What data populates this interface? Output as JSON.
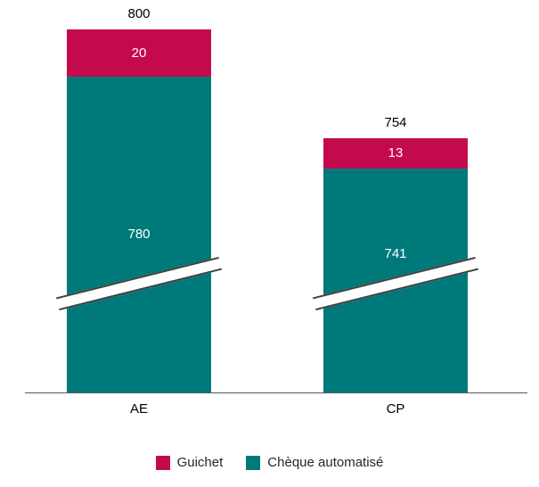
{
  "chart_data": {
    "type": "bar",
    "variant": "stacked-column-with-axis-break",
    "title": "",
    "xlabel": "",
    "ylabel": "",
    "categories": [
      "AE",
      "CP"
    ],
    "series": [
      {
        "name": "Guichet",
        "color": "#C40A4D",
        "values": [
          20,
          13
        ]
      },
      {
        "name": "Chèque automatisé",
        "color": "#00797A",
        "values": [
          780,
          741
        ]
      }
    ],
    "totals": [
      800,
      754
    ],
    "legend_position": "bottom",
    "axis_break": true,
    "gridlines": false,
    "axis_line_color": "#595959"
  }
}
